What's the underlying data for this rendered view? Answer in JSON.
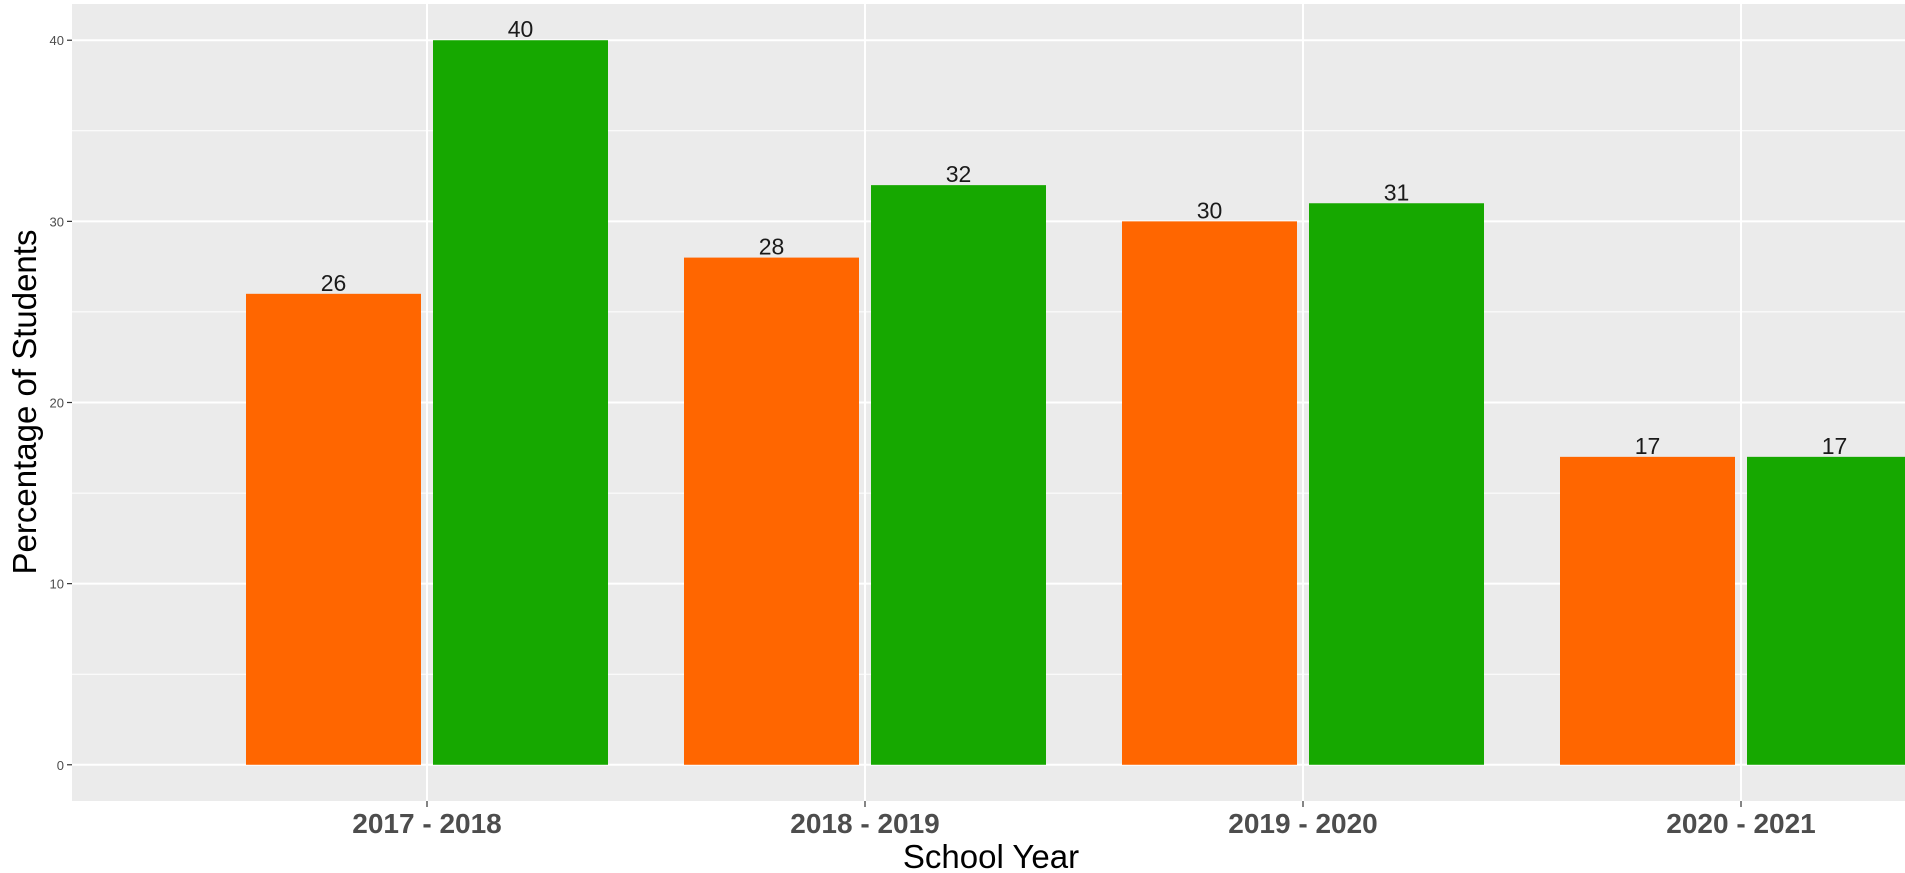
{
  "chart_data": {
    "type": "bar",
    "title": "",
    "xlabel": "School Year",
    "ylabel": "Percentage of Students",
    "categories": [
      "2017 - 2018",
      "2018 - 2019",
      "2019 - 2020",
      "2020 - 2021"
    ],
    "series": [
      {
        "values": [
          26,
          28,
          30,
          17
        ],
        "color": "#FF6600"
      },
      {
        "values": [
          40,
          32,
          31,
          17
        ],
        "color": "#16A800"
      }
    ],
    "ylim": [
      -2,
      42
    ],
    "yticks": [
      0,
      10,
      20,
      30,
      40
    ],
    "grid": true,
    "legend": "none",
    "panel_background": "#EBEBEB",
    "gridline_color": "#FFFFFF"
  }
}
